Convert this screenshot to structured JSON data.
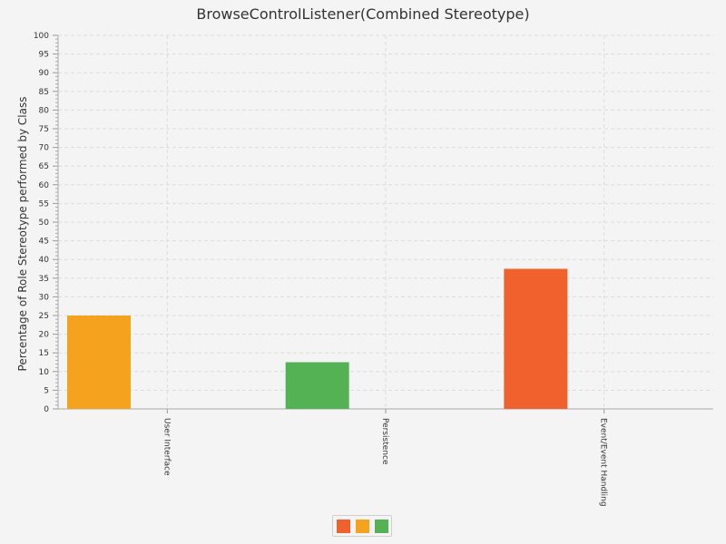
{
  "chart_data": {
    "type": "bar",
    "title": "BrowseControlListener(Combined Stereotype)",
    "xlabel": "",
    "ylabel": "Percentage of Role Stereotype performed by Class",
    "ylim": [
      0,
      100
    ],
    "y_major_ticks": [
      "0",
      "5",
      "10",
      "15",
      "20",
      "25",
      "30",
      "35",
      "40",
      "45",
      "50",
      "55",
      "60",
      "65",
      "70",
      "75",
      "80",
      "85",
      "90",
      "95",
      "100"
    ],
    "categories": [
      "User Interface",
      "Persistence",
      "Event/Event Handling"
    ],
    "series": [
      {
        "color": "#f0612e",
        "values": [
          0,
          0,
          37.5
        ]
      },
      {
        "color": "#f5a21e",
        "values": [
          25,
          0,
          0
        ]
      },
      {
        "color": "#55b254",
        "values": [
          0,
          12.5,
          0
        ]
      }
    ],
    "grid": true,
    "legend_position": "bottom"
  }
}
